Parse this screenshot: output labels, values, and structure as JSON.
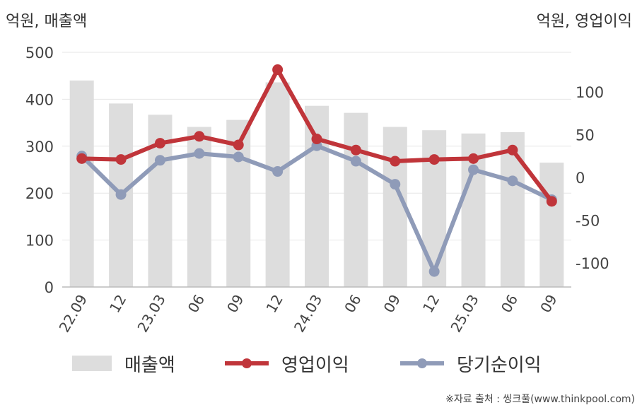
{
  "chart_data": {
    "type": "bar+line",
    "left_unit": "억원, 매출액",
    "right_unit": "억원, 영업이익",
    "categories": [
      "22.09",
      "12",
      "23.03",
      "06",
      "09",
      "12",
      "24.03",
      "06",
      "09",
      "12",
      "25.03",
      "06",
      "09"
    ],
    "left_axis": {
      "min": 0,
      "max": 500,
      "ticks": [
        0,
        100,
        200,
        300,
        400,
        500
      ]
    },
    "right_axis": {
      "min": -130,
      "max": 140,
      "ticks": [
        -100,
        -50,
        0,
        50,
        100
      ]
    },
    "series": [
      {
        "name": "매출액",
        "type": "bar",
        "axis": "left",
        "color": "#dddddd",
        "values": [
          440,
          391,
          367,
          341,
          356,
          436,
          386,
          371,
          341,
          334,
          327,
          330,
          265
        ]
      },
      {
        "name": "영업이익",
        "type": "line",
        "axis": "right",
        "color": "#c0353a",
        "values": [
          22,
          21,
          40,
          48,
          38,
          126,
          45,
          32,
          19,
          21,
          22,
          32,
          -28
        ]
      },
      {
        "name": "당기순이익",
        "type": "line",
        "axis": "right",
        "color": "#8f9bb8",
        "values": [
          25,
          -20,
          20,
          28,
          24,
          7,
          37,
          19,
          -8,
          -110,
          9,
          -4,
          -26
        ]
      }
    ],
    "legend_position": "bottom",
    "grid": true
  },
  "source": "※자료 출처 : 씽크풀(www.thinkpool.com)"
}
